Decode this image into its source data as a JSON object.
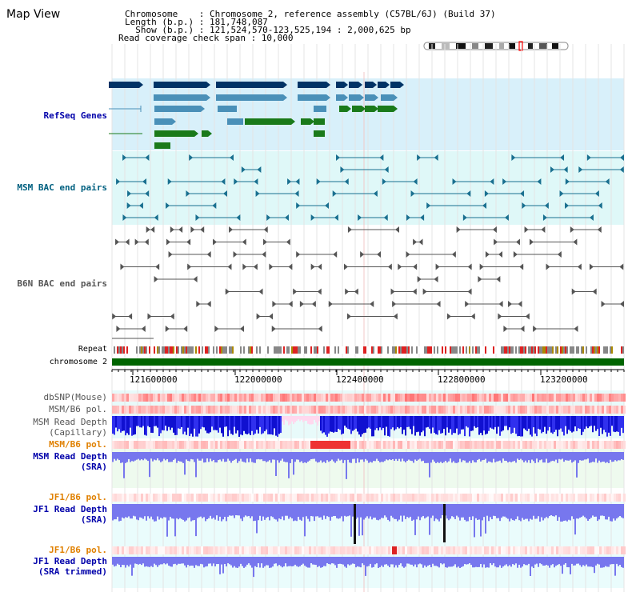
{
  "page": {
    "title": "Map View"
  },
  "header": {
    "chromosome": "Chromosome    : Chromosome 2, reference assembly (C57BL/6J) (Build 37)",
    "length": "Length (b.p.) : 181,748,087",
    "show": "  Show (b.p.) : 121,524,570-123,525,194 : 2,000,625 bp",
    "coverage": "Read coverage check span : 10,000"
  },
  "tracks": {
    "refseq": {
      "label": "RefSeq Genes",
      "color": "#00008b"
    },
    "msm_bac": {
      "label": "MSM BAC end pairs",
      "color": "#006080"
    },
    "b6n_bac": {
      "label": "B6N BAC end pairs",
      "color": "#333333"
    },
    "repeat": {
      "label": "Repeat"
    },
    "chromosome": {
      "label": "chromosome 2"
    },
    "dbsnp": {
      "label": "dbSNP(Mouse)"
    },
    "msm_b6_pol_1": {
      "label": "MSM/B6 pol."
    },
    "msm_depth_cap": {
      "line1": "MSM Read Depth",
      "line2": "(Capillary)"
    },
    "msm_b6_pol_2": {
      "label": "MSM/B6 pol."
    },
    "msm_depth_sra": {
      "line1": "MSM Read Depth",
      "line2": "(SRA)"
    },
    "jf1_b6_pol_1": {
      "label": "JF1/B6 pol."
    },
    "jf1_depth_sra": {
      "line1": "JF1 Read Depth",
      "line2": "(SRA)"
    },
    "jf1_b6_pol_2": {
      "label": "JF1/B6 pol."
    },
    "jf1_depth_trim": {
      "line1": "JF1 Read Depth",
      "line2": "(SRA trimmed)"
    }
  },
  "axis": {
    "ticks": [
      "121600000",
      "122000000",
      "122400000",
      "122800000",
      "123200000"
    ]
  },
  "colors": {
    "refseq_bg": "#d8f0fa",
    "msm_bg": "#dff8f8",
    "b6n_bg": "#ffffff",
    "chrom_green": "#006400",
    "gene_dark": "#003366",
    "gene_light": "#4a90b8",
    "gene_green": "#1a7a1a",
    "depth_blue": "#2222dd",
    "depth_light": "#7777ee",
    "pol_red": "#ff8888",
    "label_blue": "#0000aa",
    "label_orange": "#e08000",
    "label_teal": "#006080"
  }
}
